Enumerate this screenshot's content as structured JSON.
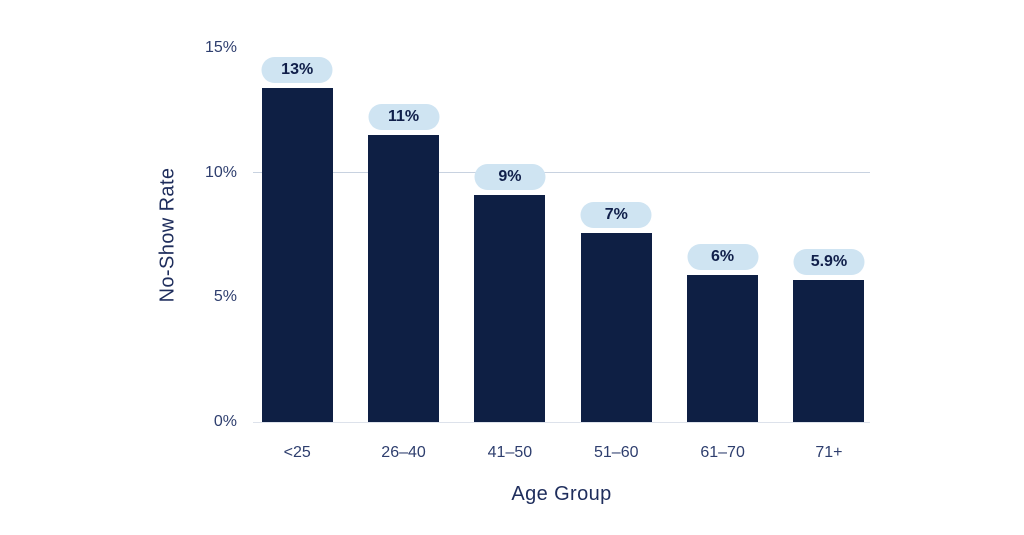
{
  "chart_data": {
    "type": "bar",
    "xlabel": "Age Group",
    "ylabel": "No-Show Rate",
    "categories": [
      "<25",
      "26–40",
      "41–50",
      "51–60",
      "61–70",
      "71+"
    ],
    "values": [
      13,
      11,
      9,
      7,
      6,
      5.9
    ],
    "value_labels": [
      "13%",
      "11%",
      "9%",
      "7%",
      "6%",
      "5.9%"
    ],
    "bar_display_heights_pct": [
      13.4,
      11.5,
      9.1,
      7.6,
      5.9,
      5.7
    ],
    "ylim": [
      0,
      15
    ],
    "yticks": [
      {
        "value": 0,
        "label": "0%"
      },
      {
        "value": 5,
        "label": "5%"
      },
      {
        "value": 10,
        "label": "10%"
      },
      {
        "value": 15,
        "label": "15%"
      }
    ],
    "gridline_values": [
      10
    ],
    "grid": "single horizontal gridline at 10% plus light baseline at 0%",
    "legend": "none",
    "colors": {
      "background": "#ffffff",
      "bar": "#0e1f44",
      "pill_background": "#cfe4f2",
      "pill_text": "#101f4a",
      "tick_text": "#2e3e6e",
      "axis_title_text": "#1e2d5c",
      "gridline": "#c8d2e0",
      "baseline": "#dde2eb"
    }
  }
}
